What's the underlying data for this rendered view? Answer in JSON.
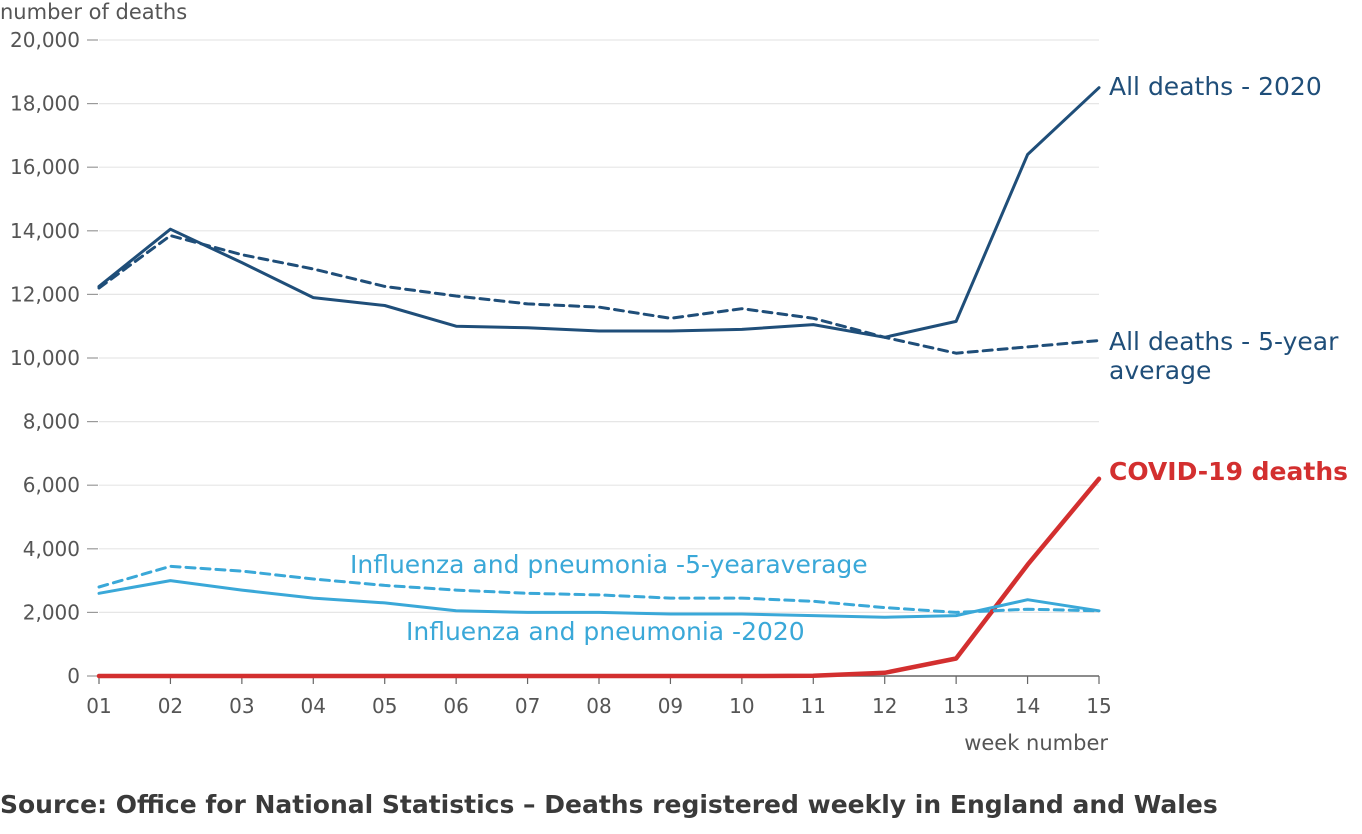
{
  "chart_data": {
    "type": "line",
    "title": "",
    "ylabel": "number of deaths",
    "xlabel": "week number",
    "ylim": [
      0,
      20000
    ],
    "yticks": [
      0,
      2000,
      4000,
      6000,
      8000,
      10000,
      12000,
      14000,
      16000,
      18000,
      20000
    ],
    "ytick_labels": [
      "0",
      "2,000",
      "4,000",
      "6,000",
      "8,000",
      "10,000",
      "12,000",
      "14,000",
      "16,000",
      "18,000",
      "20,000"
    ],
    "categories": [
      "01",
      "02",
      "03",
      "04",
      "05",
      "06",
      "07",
      "08",
      "09",
      "10",
      "11",
      "12",
      "13",
      "14",
      "15"
    ],
    "grid": true,
    "series": [
      {
        "name": "All deaths - 2020",
        "label_lines": [
          "All deaths - 2020"
        ],
        "color": "#1f4e79",
        "dashed": false,
        "label_bold": false,
        "values": [
          12250,
          14050,
          13000,
          11900,
          11650,
          11000,
          10950,
          10850,
          10850,
          10900,
          11050,
          10650,
          11150,
          16400,
          18500
        ]
      },
      {
        "name": "All deaths - 5-year average",
        "label_lines": [
          "All deaths - 5-year",
          "average"
        ],
        "color": "#1f4e79",
        "dashed": true,
        "label_bold": false,
        "values": [
          12200,
          13850,
          13250,
          12800,
          12250,
          11950,
          11700,
          11600,
          11250,
          11550,
          11250,
          10650,
          10150,
          10350,
          10550
        ]
      },
      {
        "name": "COVID-19 deaths",
        "label_lines": [
          "COVID-19 deaths"
        ],
        "color": "#d32f2f",
        "dashed": false,
        "label_bold": true,
        "values": [
          0,
          0,
          0,
          0,
          0,
          0,
          0,
          0,
          0,
          0,
          5,
          100,
          550,
          3500,
          6200
        ]
      },
      {
        "name": "Influenza and pneumonia -5-yearaverage",
        "label_lines": [
          "Influenza and pneumonia -5-yearaverage"
        ],
        "color": "#3aa8d8",
        "dashed": true,
        "label_bold": false,
        "values": [
          2800,
          3450,
          3300,
          3050,
          2850,
          2700,
          2600,
          2550,
          2450,
          2450,
          2350,
          2150,
          2000,
          2100,
          2050
        ]
      },
      {
        "name": "Influenza and pneumonia -2020",
        "label_lines": [
          "Influenza and pneumonia -2020"
        ],
        "color": "#3aa8d8",
        "dashed": false,
        "label_bold": false,
        "values": [
          2600,
          3000,
          2700,
          2450,
          2300,
          2050,
          2000,
          2000,
          1950,
          1950,
          1900,
          1850,
          1900,
          2400,
          2050
        ]
      }
    ]
  },
  "source_text": "Source: Office for National Statistics – Deaths registered weekly in England and Wales"
}
